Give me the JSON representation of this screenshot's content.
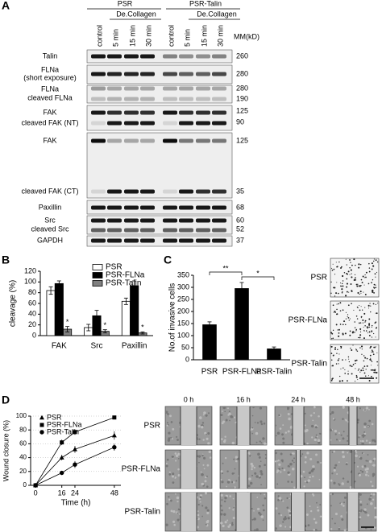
{
  "panel_labels": [
    "A",
    "B",
    "C",
    "D"
  ],
  "blot": {
    "groups": [
      {
        "name": "PSR",
        "treatment": "De.Collagen"
      },
      {
        "name": "PSR-Talin",
        "treatment": "De.Collagen"
      }
    ],
    "lanes": [
      "control",
      "5 min",
      "15 min",
      "30 min",
      "control",
      "5 min",
      "15 min",
      "30 min"
    ],
    "mm_header": "MM(kD)",
    "rows": [
      {
        "labels": [
          "Talin"
        ],
        "mm": [
          260
        ]
      },
      {
        "labels": [
          "FLNa",
          "(short exposure)"
        ],
        "mm": [
          280
        ]
      },
      {
        "labels": [
          "FLNa",
          "cleaved FLNa"
        ],
        "mm": [
          280,
          190
        ]
      },
      {
        "labels": [
          "FAK",
          "cleaved FAK (NT)"
        ],
        "mm": [
          125,
          90
        ]
      },
      {
        "labels": [
          "FAK",
          "cleaved FAK (CT)"
        ],
        "mm": [
          125,
          35
        ]
      },
      {
        "labels": [
          "Paxillin"
        ],
        "mm": [
          68
        ]
      },
      {
        "labels": [
          "Src",
          "cleaved Src"
        ],
        "mm": [
          60,
          52
        ]
      },
      {
        "labels": [
          "GAPDH"
        ],
        "mm": [
          37
        ]
      }
    ]
  },
  "chart_data": [
    {
      "type": "bar",
      "y_label": "cleavage (%)",
      "categories": [
        "FAK",
        "Src",
        "Paxillin"
      ],
      "series": [
        {
          "name": "PSR",
          "color": "#ffffff",
          "values": [
            84,
            15,
            64
          ],
          "errors": [
            7,
            6,
            6
          ]
        },
        {
          "name": "PSR-FLNa",
          "color": "#000000",
          "values": [
            97,
            37,
            93
          ],
          "errors": [
            5,
            10,
            9
          ]
        },
        {
          "name": "PSR-Talin",
          "color": "#808080",
          "values": [
            12,
            8,
            5
          ],
          "errors": [
            5,
            3,
            2
          ]
        }
      ],
      "ylim": [
        0,
        120
      ],
      "yticks": [
        0,
        20,
        40,
        60,
        80,
        100,
        120
      ],
      "annotations": [
        "*",
        "*",
        "*"
      ]
    },
    {
      "type": "bar",
      "y_label": "No.of invasive cells",
      "categories": [
        "PSR",
        "PSR-FLNa",
        "PSR-Talin"
      ],
      "values": [
        145,
        295,
        45
      ],
      "errors": [
        12,
        25,
        8
      ],
      "color": "#000000",
      "ylim": [
        0,
        350
      ],
      "yticks": [
        0,
        50,
        100,
        150,
        200,
        250,
        300,
        350
      ],
      "annotations": [
        "**",
        "*"
      ],
      "image_rows": [
        "PSR",
        "PSR-FLNa",
        "PSR-Talin"
      ]
    },
    {
      "type": "line",
      "x_label": "Time (h)",
      "y_label": "Wound closure (%)",
      "x": [
        0,
        16,
        24,
        48
      ],
      "series": [
        {
          "name": "PSR",
          "marker": "triangle",
          "color": "#000000",
          "values": [
            0,
            40,
            52,
            72
          ],
          "errors": [
            0,
            4,
            5,
            6
          ]
        },
        {
          "name": "PSR-FLNa",
          "marker": "square",
          "color": "#000000",
          "values": [
            0,
            62,
            77,
            98
          ],
          "errors": [
            0,
            4,
            4,
            2
          ]
        },
        {
          "name": "PSR-Talin",
          "marker": "circle",
          "color": "#000000",
          "values": [
            0,
            18,
            30,
            55
          ],
          "errors": [
            0,
            3,
            5,
            5
          ]
        }
      ],
      "xlim": [
        -3,
        52
      ],
      "xticks": [
        0,
        16,
        24,
        48
      ],
      "ylim": [
        0,
        100
      ],
      "yticks": [
        0,
        20,
        40,
        60,
        80,
        100
      ],
      "grid": true,
      "image_columns": [
        "0 h",
        "16 h",
        "24 h",
        "48 h"
      ],
      "image_rows": [
        "PSR",
        "PSR-FLNa",
        "PSR-Talin"
      ]
    }
  ]
}
